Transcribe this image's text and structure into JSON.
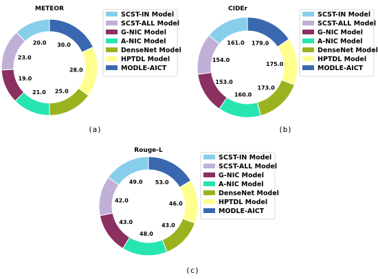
{
  "legend_labels": [
    "SCST-IN Model",
    "SCST-ALL Model",
    "G-NIC Model",
    "A-NIC Model",
    "DenseNet Model",
    "HPTDL Model",
    "MODLE-AICT"
  ],
  "colors": [
    "#87ceeb",
    "#c0b0d8",
    "#8b3060",
    "#27e5b0",
    "#99b320",
    "#ffff90",
    "#3a68b0"
  ],
  "chart_data": [
    {
      "type": "pie",
      "title": "METEOR",
      "caption": "(a)",
      "categories": [
        "SCST-IN Model",
        "SCST-ALL Model",
        "G-NIC Model",
        "A-NIC Model",
        "DenseNet Model",
        "HPTDL Model",
        "MODLE-AICT"
      ],
      "values": [
        20.0,
        23.0,
        19.0,
        21.0,
        25.0,
        28.0,
        30.0
      ],
      "labels": [
        "20.0",
        "23.0",
        "19.0",
        "21.0",
        "25.0",
        "28.0",
        "30.0"
      ],
      "legend_position": "right"
    },
    {
      "type": "pie",
      "title": "CIDEr",
      "caption": "(b)",
      "categories": [
        "SCST-IN Model",
        "SCST-ALL Model",
        "G-NIC Model",
        "A-NIC Model",
        "DenseNet Model",
        "HPTDL Model",
        "MODLE-AICT"
      ],
      "values": [
        161.0,
        154.0,
        153.0,
        160.0,
        173.0,
        175.0,
        179.0
      ],
      "labels": [
        "161.0",
        "154.0",
        "153.0",
        "160.0",
        "173.0",
        "175.0",
        "179.0"
      ],
      "legend_position": "right"
    },
    {
      "type": "pie",
      "title": "Rouge-L",
      "caption": "(c)",
      "categories": [
        "SCST-IN Model",
        "SCST-ALL Model",
        "G-NIC Model",
        "A-NIC Model",
        "DenseNet Model",
        "HPTDL Model",
        "MODLE-AICT"
      ],
      "values": [
        49.0,
        42.0,
        43.0,
        48.0,
        43.0,
        46.0,
        53.0
      ],
      "labels": [
        "49.0",
        "42.0",
        "43.0",
        "48.0",
        "43.0",
        "46.0",
        "53.0"
      ],
      "legend_position": "right"
    }
  ]
}
